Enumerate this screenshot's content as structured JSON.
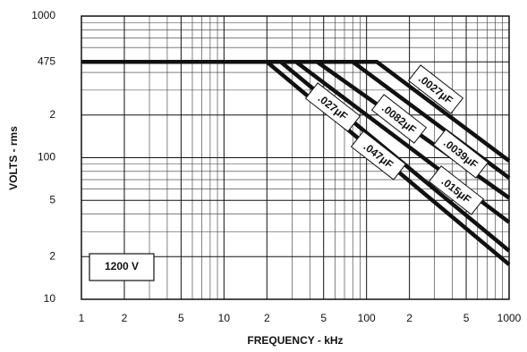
{
  "chart_data": {
    "type": "line",
    "x_label": "FREQUENCY - kHz",
    "y_label": "VOLTS - rms",
    "annotation": "1200 V",
    "xlog": true,
    "ylog": true,
    "grid": true,
    "xlim": [
      1,
      1000
    ],
    "ylim": [
      10,
      1000
    ],
    "xticks": [
      1,
      2,
      5,
      10,
      {
        "value": 20,
        "label": "2"
      },
      {
        "value": 50,
        "label": "5"
      },
      100,
      {
        "value": 200,
        "label": "2"
      },
      {
        "value": 500,
        "label": "5"
      },
      1000
    ],
    "yticks": [
      1000,
      475,
      {
        "value": 200,
        "label": "2"
      },
      100,
      {
        "value": 50,
        "label": "5"
      },
      {
        "value": 20,
        "label": "2"
      },
      10
    ],
    "x_minor_ticks": [
      3,
      4,
      6,
      7,
      8,
      9,
      30,
      40,
      60,
      70,
      80,
      90,
      300,
      400,
      600,
      700,
      800,
      900
    ],
    "y_minor_ticks": [
      30,
      40,
      60,
      70,
      80,
      90,
      300,
      400,
      600,
      700,
      800,
      900
    ],
    "series": [
      {
        "name": ".0027μF",
        "color": "#111111",
        "x": [
          1,
          118,
          1000
        ],
        "values": [
          475,
          475,
          95
        ]
      },
      {
        "name": ".0039μF",
        "color": "#111111",
        "x": [
          1,
          80,
          1000
        ],
        "values": [
          475,
          475,
          72
        ]
      },
      {
        "name": ".0082μF",
        "color": "#111111",
        "x": [
          1,
          45,
          1000
        ],
        "values": [
          475,
          475,
          52
        ]
      },
      {
        "name": ".015μF",
        "color": "#111111",
        "x": [
          1,
          32,
          1000
        ],
        "values": [
          475,
          475,
          35
        ]
      },
      {
        "name": ".027μF",
        "color": "#111111",
        "x": [
          1,
          25,
          1000
        ],
        "values": [
          475,
          475,
          22
        ]
      },
      {
        "name": ".047μF",
        "color": "#111111",
        "x": [
          1,
          20,
          1000
        ],
        "values": [
          475,
          475,
          17.6
        ]
      }
    ]
  }
}
